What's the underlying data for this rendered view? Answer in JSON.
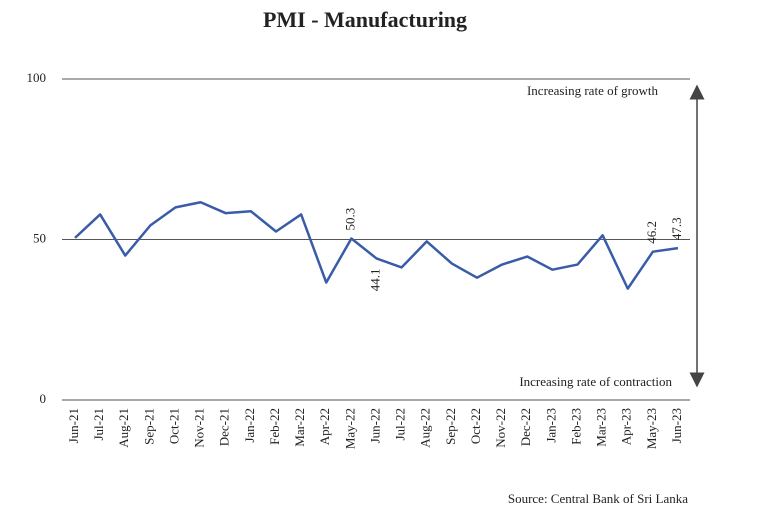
{
  "chart_data": {
    "type": "line",
    "title": "PMI - Manufacturing",
    "categories": [
      "Jun-21",
      "Jul-21",
      "Aug-21",
      "Sep-21",
      "Oct-21",
      "Nov-21",
      "Dec-21",
      "Jan-22",
      "Feb-22",
      "Mar-22",
      "Apr-22",
      "May-22",
      "Jun-22",
      "Jul-22",
      "Aug-22",
      "Sep-22",
      "Oct-22",
      "Nov-22",
      "Dec-22",
      "Jan-23",
      "Feb-23",
      "Mar-23",
      "Apr-23",
      "May-23",
      "Jun-23"
    ],
    "values": [
      50.5,
      57.8,
      45,
      54.4,
      60,
      61.6,
      58.2,
      58.8,
      52.5,
      57.8,
      36.6,
      50.3,
      44.1,
      41.3,
      49.4,
      42.5,
      38.1,
      42.2,
      44.7,
      40.6,
      42.2,
      51.3,
      34.7,
      46.2,
      47.3
    ],
    "value_labels": [
      null,
      null,
      null,
      null,
      null,
      null,
      null,
      null,
      null,
      null,
      null,
      "50.3",
      "44.1",
      null,
      null,
      null,
      null,
      null,
      null,
      null,
      null,
      null,
      null,
      "46.2",
      "47.3"
    ],
    "color": "#3a5ca8",
    "ylim": [
      0,
      100
    ],
    "yticks": [
      0,
      50,
      100
    ],
    "grid": true,
    "annotations": [
      "Increasing rate of growth",
      "Increasing rate of contraction"
    ],
    "source": "Source: Central Bank of Sri Lanka"
  }
}
